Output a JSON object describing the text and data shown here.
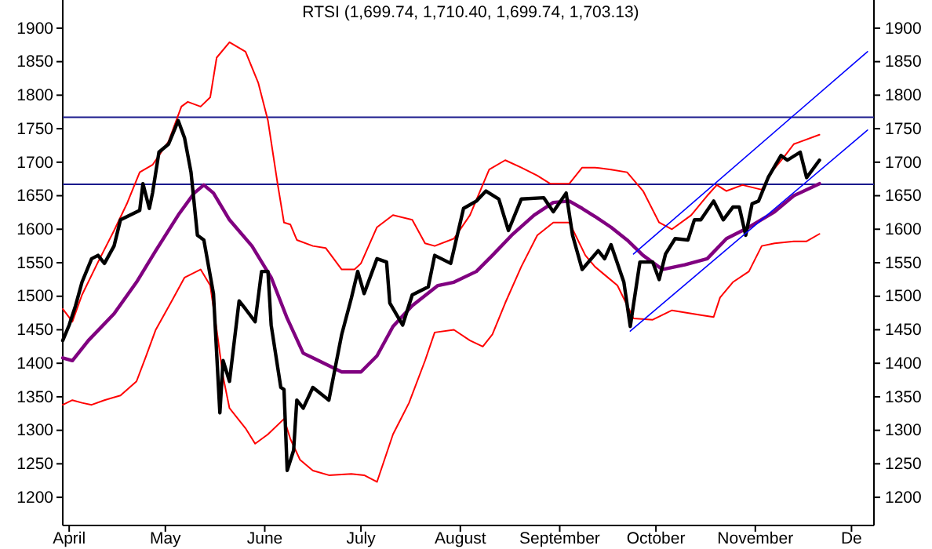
{
  "chart_data": {
    "type": "line",
    "title": "RTSI (1,699.74, 1,710.40, 1,699.74, 1,703.13)",
    "xlim": [
      "--03-30",
      "--12-08"
    ],
    "xticks": [
      {
        "value": "--04-01",
        "label": "April"
      },
      {
        "value": "--05-01",
        "label": "May"
      },
      {
        "value": "--06-01",
        "label": "June"
      },
      {
        "value": "--07-01",
        "label": "July"
      },
      {
        "value": "--08-01",
        "label": "August"
      },
      {
        "value": "--09-01",
        "label": "September"
      },
      {
        "value": "--10-01",
        "label": "October"
      },
      {
        "value": "--11-01",
        "label": "November"
      },
      {
        "value": "--12-01",
        "label": "De"
      }
    ],
    "ylim": [
      1158,
      1942
    ],
    "yticks": [
      1200,
      1250,
      1300,
      1350,
      1400,
      1450,
      1500,
      1550,
      1600,
      1650,
      1700,
      1750,
      1800,
      1850,
      1900
    ],
    "y2lim": [
      1158,
      1942
    ],
    "y2ticks": [
      1200,
      1250,
      1300,
      1350,
      1400,
      1450,
      1500,
      1550,
      1600,
      1650,
      1700,
      1750,
      1800,
      1850,
      1900
    ],
    "marker": "none",
    "line_style": "solid",
    "ref_lines": [
      {
        "axis": "y",
        "value": 1767,
        "color": "#1a1a8c"
      },
      {
        "axis": "y",
        "value": 1667,
        "color": "#1a1a8c"
      }
    ],
    "series": [
      {
        "color": "#ff0000",
        "x": [
          "--03-30",
          "--04-02",
          "--04-05",
          "--04-10",
          "--04-15",
          "--04-19",
          "--04-23",
          "--04-27",
          "--05-02",
          "--05-06",
          "--05-08",
          "--05-12",
          "--05-15",
          "--05-17",
          "--05-21",
          "--05-26",
          "--05-30",
          "--06-02",
          "--06-05",
          "--06-07",
          "--06-09",
          "--06-11",
          "--06-16",
          "--06-20",
          "--06-25",
          "--06-29",
          "--07-01",
          "--07-06",
          "--07-11",
          "--07-17",
          "--07-21",
          "--07-24",
          "--07-30",
          "--08-04",
          "--08-10",
          "--08-15",
          "--08-20",
          "--08-25",
          "--08-29",
          "--09-04",
          "--09-08",
          "--09-12",
          "--09-17",
          "--09-22",
          "--09-27",
          "--10-02",
          "--10-06",
          "--10-12",
          "--10-17",
          "--10-20",
          "--10-23",
          "--10-28",
          "--11-03",
          "--11-06",
          "--11-10",
          "--11-13",
          "--11-21"
        ],
        "values": [
          1481,
          1462,
          1502,
          1551,
          1598,
          1638,
          1685,
          1696,
          1731,
          1783,
          1790,
          1783,
          1797,
          1856,
          1879,
          1865,
          1818,
          1762,
          1668,
          1610,
          1607,
          1584,
          1575,
          1572,
          1540,
          1540,
          1549,
          1603,
          1621,
          1614,
          1579,
          1575,
          1586,
          1621,
          1689,
          1703,
          1692,
          1680,
          1668,
          1668,
          1692,
          1692,
          1689,
          1685,
          1657,
          1610,
          1600,
          1621,
          1650,
          1666,
          1657,
          1666,
          1659,
          1685,
          1708,
          1727,
          1741
        ]
      },
      {
        "color": "#ff0000",
        "x": [
          "--03-30",
          "--04-02",
          "--04-05",
          "--04-08",
          "--04-12",
          "--04-17",
          "--04-22",
          "--04-25",
          "--04-28",
          "--05-03",
          "--05-07",
          "--05-12",
          "--05-15",
          "--05-17",
          "--05-19",
          "--05-21",
          "--05-26",
          "--05-29",
          "--06-02",
          "--06-07",
          "--06-09",
          "--06-12",
          "--06-16",
          "--06-21",
          "--06-28",
          "--07-02",
          "--07-06",
          "--07-11",
          "--07-16",
          "--07-21",
          "--07-24",
          "--07-30",
          "--08-04",
          "--08-08",
          "--08-11",
          "--08-15",
          "--08-20",
          "--08-25",
          "--08-30",
          "--09-04",
          "--09-09",
          "--09-12",
          "--09-15",
          "--09-19",
          "--09-24",
          "--09-30",
          "--10-06",
          "--10-15",
          "--10-19",
          "--10-21",
          "--10-25",
          "--10-30",
          "--11-03",
          "--11-07",
          "--11-13",
          "--11-17",
          "--11-21"
        ],
        "values": [
          1338,
          1345,
          1341,
          1338,
          1345,
          1352,
          1373,
          1411,
          1450,
          1493,
          1528,
          1540,
          1516,
          1450,
          1380,
          1333,
          1303,
          1280,
          1294,
          1317,
          1287,
          1256,
          1240,
          1233,
          1235,
          1233,
          1223,
          1294,
          1341,
          1404,
          1446,
          1450,
          1434,
          1425,
          1443,
          1490,
          1544,
          1591,
          1610,
          1610,
          1561,
          1544,
          1532,
          1516,
          1467,
          1465,
          1479,
          1472,
          1469,
          1498,
          1521,
          1537,
          1575,
          1579,
          1582,
          1582,
          1593
        ]
      },
      {
        "color": "#800080",
        "x": [
          "--03-30",
          "--04-02",
          "--04-07",
          "--04-15",
          "--04-22",
          "--04-28",
          "--05-05",
          "--05-10",
          "--05-13",
          "--05-16",
          "--05-21",
          "--05-28",
          "--06-03",
          "--06-08",
          "--06-13",
          "--06-16",
          "--06-25",
          "--07-01",
          "--07-06",
          "--07-11",
          "--07-17",
          "--07-25",
          "--07-30",
          "--08-06",
          "--08-11",
          "--08-17",
          "--08-24",
          "--08-30",
          "--09-04",
          "--09-08",
          "--09-12",
          "--09-17",
          "--09-22",
          "--09-27",
          "--10-03",
          "--10-10",
          "--10-17",
          "--10-23",
          "--10-30",
          "--11-07",
          "--11-13",
          "--11-21"
        ],
        "values": [
          1408,
          1404,
          1434,
          1474,
          1521,
          1568,
          1621,
          1654,
          1666,
          1654,
          1614,
          1575,
          1528,
          1467,
          1415,
          1408,
          1387,
          1387,
          1411,
          1455,
          1486,
          1516,
          1521,
          1537,
          1561,
          1591,
          1621,
          1640,
          1642,
          1631,
          1619,
          1603,
          1584,
          1561,
          1540,
          1547,
          1556,
          1586,
          1603,
          1626,
          1650,
          1668
        ]
      },
      {
        "color": "#000000",
        "x": [
          "--03-30",
          "--04-01",
          "--04-03",
          "--04-05",
          "--04-08",
          "--04-10",
          "--04-12",
          "--04-15",
          "--04-17",
          "--04-20",
          "--04-23",
          "--04-24",
          "--04-26",
          "--04-27",
          "--04-29",
          "--05-02",
          "--05-05",
          "--05-07",
          "--05-09",
          "--05-11",
          "--05-13",
          "--05-16",
          "--05-18",
          "--05-19",
          "--05-21",
          "--05-24",
          "--05-26",
          "--05-29",
          "--05-31",
          "--06-02",
          "--06-03",
          "--06-06",
          "--06-07",
          "--06-08",
          "--06-10",
          "--06-11",
          "--06-13",
          "--06-16",
          "--06-21",
          "--06-25",
          "--06-28",
          "--06-30",
          "--07-02",
          "--07-06",
          "--07-09",
          "--07-10",
          "--07-14",
          "--07-17",
          "--07-22",
          "--07-24",
          "--07-29",
          "--08-02",
          "--08-06",
          "--08-09",
          "--08-13",
          "--08-16",
          "--08-20",
          "--08-27",
          "--08-30",
          "--09-03",
          "--09-05",
          "--09-08",
          "--09-13",
          "--09-15",
          "--09-17",
          "--09-21",
          "--09-23",
          "--09-26",
          "--09-30",
          "--10-02",
          "--10-04",
          "--10-07",
          "--10-11",
          "--10-13",
          "--10-15",
          "--10-19",
          "--10-22",
          "--10-25",
          "--10-27",
          "--10-29",
          "--10-31",
          "--11-02",
          "--11-05",
          "--11-09",
          "--11-11",
          "--11-15",
          "--11-17",
          "--11-21"
        ],
        "values": [
          1434,
          1457,
          1486,
          1521,
          1556,
          1561,
          1549,
          1575,
          1614,
          1621,
          1628,
          1668,
          1631,
          1654,
          1715,
          1727,
          1762,
          1736,
          1685,
          1591,
          1584,
          1504,
          1326,
          1404,
          1373,
          1493,
          1481,
          1462,
          1537,
          1537,
          1457,
          1364,
          1361,
          1240,
          1270,
          1345,
          1333,
          1364,
          1345,
          1443,
          1497,
          1537,
          1504,
          1556,
          1551,
          1490,
          1457,
          1502,
          1514,
          1561,
          1549,
          1631,
          1642,
          1657,
          1645,
          1598,
          1645,
          1647,
          1626,
          1654,
          1591,
          1540,
          1568,
          1556,
          1577,
          1521,
          1455,
          1551,
          1551,
          1525,
          1563,
          1586,
          1584,
          1614,
          1614,
          1642,
          1614,
          1633,
          1633,
          1591,
          1638,
          1642,
          1677,
          1710,
          1703,
          1715,
          1677,
          1703
        ]
      },
      {
        "type": "line",
        "color": "#0000ff",
        "x": [
          "--09-24",
          "--12-06"
        ],
        "values": [
          1563,
          1865
        ]
      },
      {
        "type": "line",
        "color": "#0000ff",
        "x": [
          "--09-23",
          "--12-06"
        ],
        "values": [
          1448,
          1748
        ]
      }
    ]
  }
}
